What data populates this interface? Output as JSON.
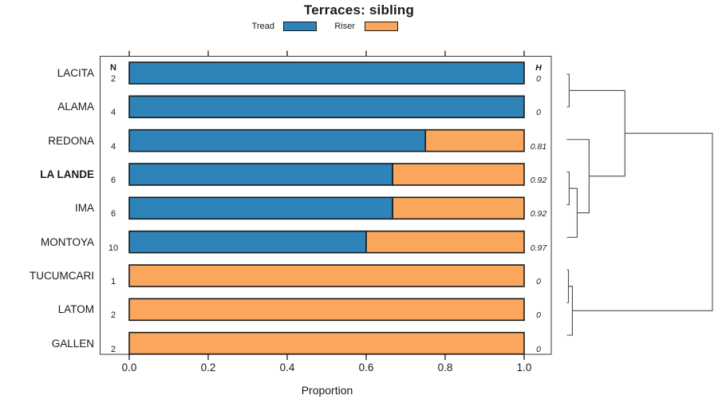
{
  "title": "Terraces: sibling",
  "columns": {
    "n_header": "N",
    "h_header": "H"
  },
  "chart_data": {
    "type": "bar",
    "orientation": "horizontal",
    "stacked": true,
    "title": "Terraces: sibling",
    "xlabel": "Proportion",
    "xlim": [
      0,
      1
    ],
    "xticks": [
      "0.0",
      "0.2",
      "0.4",
      "0.6",
      "0.8",
      "1.0"
    ],
    "grid": false,
    "legend_position": "top",
    "categories": [
      "LACITA",
      "ALAMA",
      "REDONA",
      "LA LANDE",
      "IMA",
      "MONTOYA",
      "TUCUMCARI",
      "LATOM",
      "GALLEN"
    ],
    "bold_category": "LA LANDE",
    "N": [
      2,
      4,
      4,
      6,
      6,
      10,
      1,
      2,
      2
    ],
    "H": [
      0,
      0,
      0.81,
      0.92,
      0.92,
      0.97,
      0,
      0,
      0
    ],
    "series": [
      {
        "name": "Tread",
        "color": "#2E83B8",
        "values": [
          1,
          1,
          0.75,
          0.667,
          0.667,
          0.6,
          0,
          0,
          0
        ]
      },
      {
        "name": "Riser",
        "color": "#FAA65C",
        "values": [
          0,
          0,
          0.25,
          0.333,
          0.333,
          0.4,
          1,
          1,
          1
        ]
      }
    ],
    "bar_border_color": "#1a1a1a",
    "dendrogram": {
      "side": "right",
      "leaf_order": [
        "LACITA",
        "ALAMA",
        "REDONA",
        "LA LANDE",
        "IMA",
        "MONTOYA",
        "TUCUMCARI",
        "LATOM",
        "GALLEN"
      ],
      "merges": [
        {
          "a": {
            "leaf": 0
          },
          "b": {
            "leaf": 1
          },
          "h": 0.016
        },
        {
          "a": {
            "leaf": 3
          },
          "b": {
            "leaf": 4
          },
          "h": 0.016
        },
        {
          "a": {
            "merge": 1
          },
          "b": {
            "leaf": 5
          },
          "h": 0.071
        },
        {
          "a": {
            "leaf": 2
          },
          "b": {
            "merge": 2
          },
          "h": 0.153
        },
        {
          "a": {
            "merge": 0
          },
          "b": {
            "merge": 3
          },
          "h": 0.399
        },
        {
          "a": {
            "leaf": 6
          },
          "b": {
            "leaf": 7
          },
          "h": 0.011
        },
        {
          "a": {
            "merge": 5
          },
          "b": {
            "leaf": 8
          },
          "h": 0.038
        },
        {
          "a": {
            "merge": 4
          },
          "b": {
            "merge": 6
          },
          "h": 1.0
        }
      ],
      "line_color": "#4c4c4c"
    }
  }
}
